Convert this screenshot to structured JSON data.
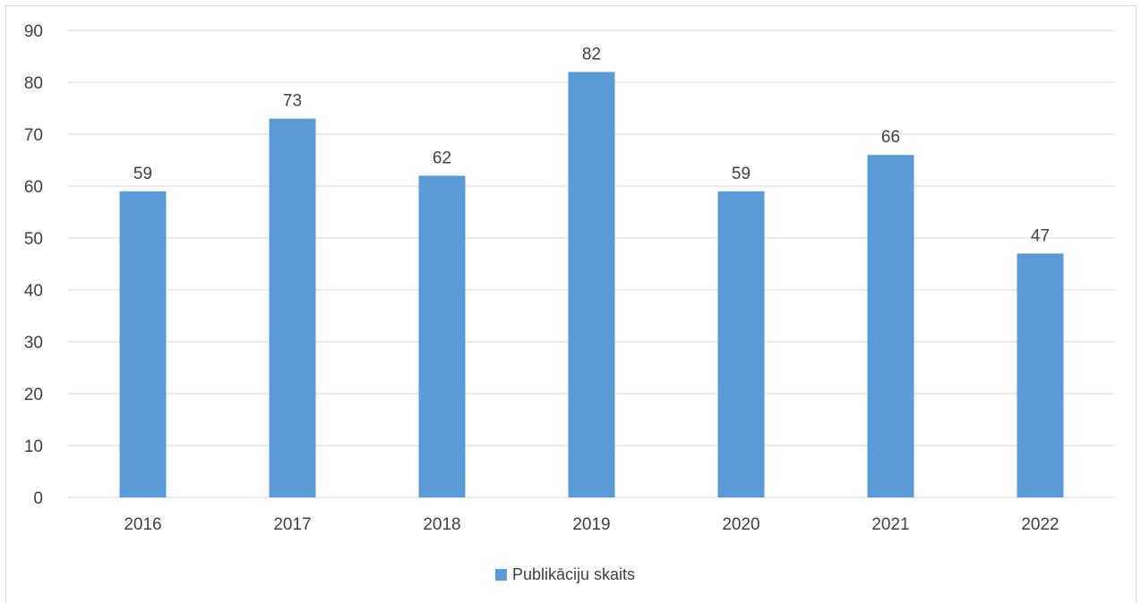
{
  "chart_data": {
    "type": "bar",
    "title": "",
    "xlabel": "",
    "ylabel": "",
    "categories": [
      "2016",
      "2017",
      "2018",
      "2019",
      "2020",
      "2021",
      "2022"
    ],
    "series": [
      {
        "name": "Publikāciju skaits",
        "values": [
          59,
          73,
          62,
          82,
          59,
          66,
          47
        ],
        "color": "#5B9BD5"
      }
    ],
    "ylim": [
      0,
      90
    ],
    "yticks": [
      "0",
      "10",
      "20",
      "30",
      "40",
      "50",
      "60",
      "70",
      "80",
      "90"
    ],
    "data_labels": [
      "59",
      "73",
      "62",
      "82",
      "59",
      "66",
      "47"
    ],
    "grid": true,
    "gridline_color": "#d9d9d9",
    "legend_position": "bottom"
  }
}
